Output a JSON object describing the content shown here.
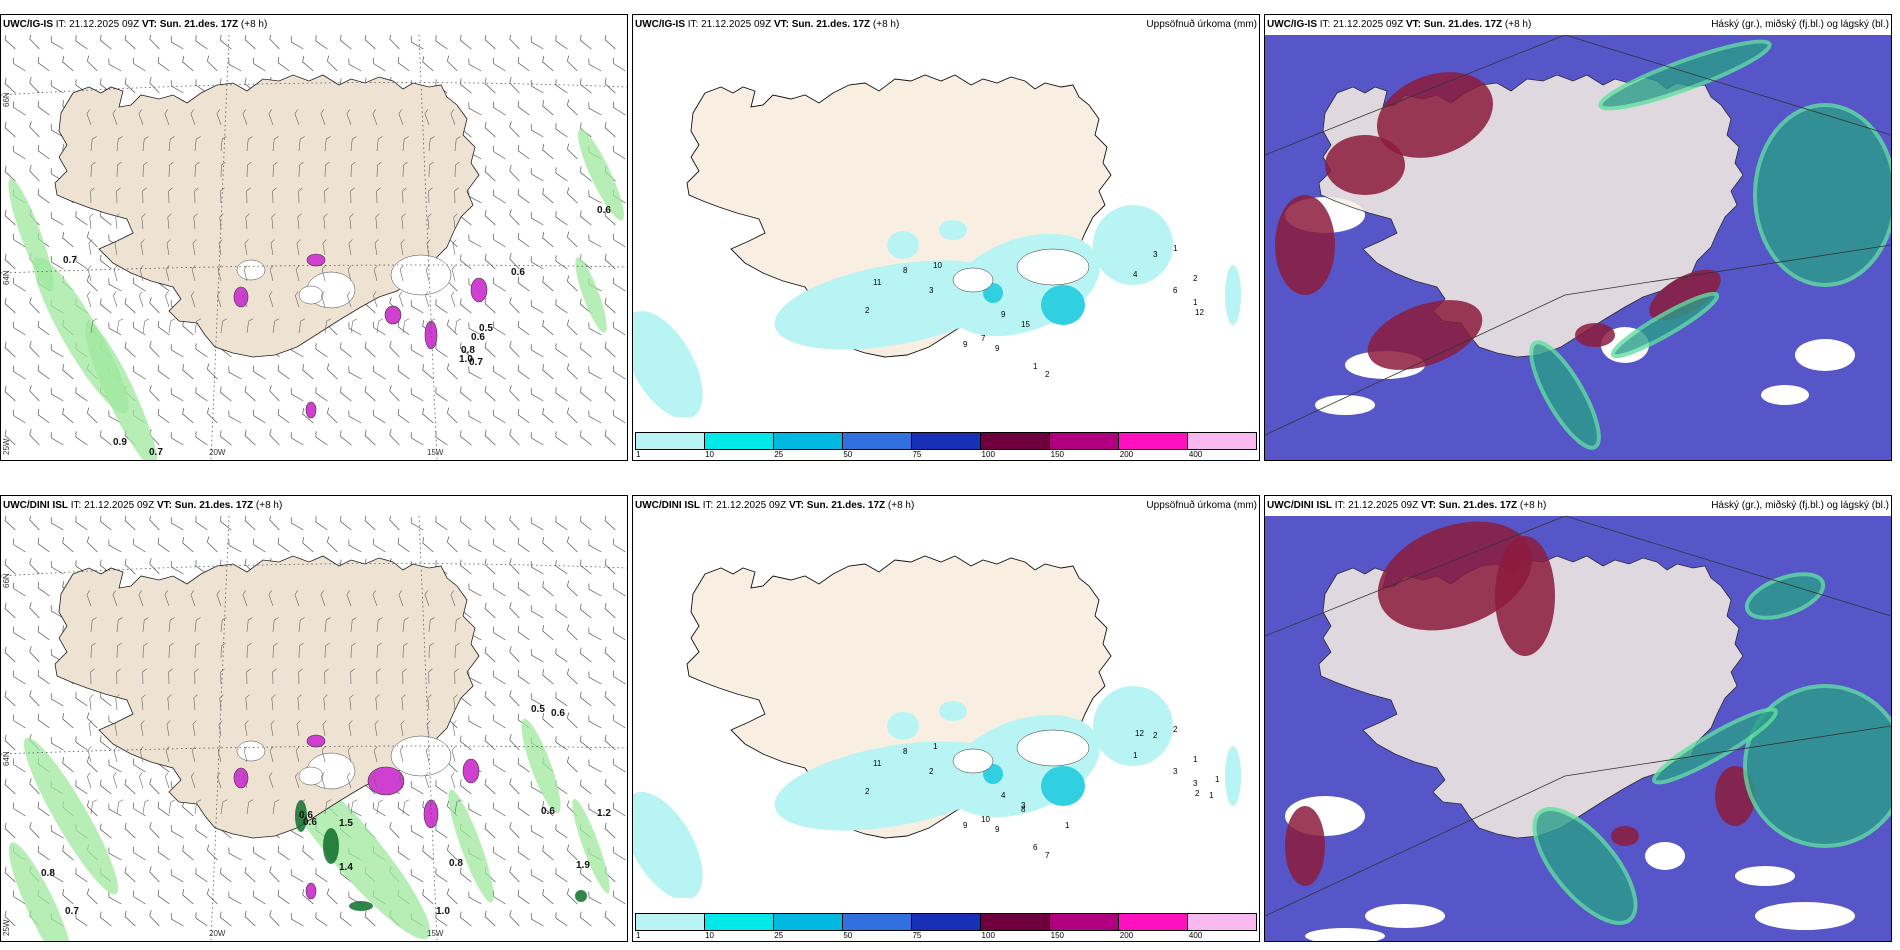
{
  "panels": [
    {
      "model": "UWC/IG-IS",
      "it_label": "IT:",
      "it": "21.12.2025 09Z",
      "vt_label": "VT:",
      "vt": "Sun. 21.des. 17Z",
      "lead": "(+8 h)",
      "title": ""
    },
    {
      "model": "UWC/IG-IS",
      "it_label": "IT:",
      "it": "21.12.2025 09Z",
      "vt_label": "VT:",
      "vt": "Sun. 21.des. 17Z",
      "lead": "(+8 h)",
      "title": "Uppsöfnuð úrkoma (mm)"
    },
    {
      "model": "UWC/IG-IS",
      "it_label": "IT:",
      "it": "21.12.2025 09Z",
      "vt_label": "VT:",
      "vt": "Sun. 21.des. 17Z",
      "lead": "(+8 h)",
      "title": "Háský (gr.), miðský (fj.bl.) og lágský (bl.)"
    },
    {
      "model": "UWC/DINI ISL",
      "it_label": "IT:",
      "it": "21.12.2025 09Z",
      "vt_label": "VT:",
      "vt": "Sun. 21.des. 17Z",
      "lead": "(+8 h)",
      "title": ""
    },
    {
      "model": "UWC/DINI ISL",
      "it_label": "IT:",
      "it": "21.12.2025 09Z",
      "vt_label": "VT:",
      "vt": "Sun. 21.des. 17Z",
      "lead": "(+8 h)",
      "title": "Uppsöfnuð úrkoma (mm)"
    },
    {
      "model": "UWC/DINI ISL",
      "it_label": "IT:",
      "it": "21.12.2025 09Z",
      "vt_label": "VT:",
      "vt": "Sun. 21.des. 17Z",
      "lead": "(+8 h)",
      "title": "Háský (gr.), miðský (fj.bl.) og lágský (bl.)"
    }
  ],
  "grid_labels": {
    "lat66": "66N",
    "lat64": "64N",
    "lon20": "20W",
    "lon15": "15W",
    "lon25": "25W"
  },
  "legend": {
    "colors": [
      "#b8f4f4",
      "#00e8e8",
      "#00b8e0",
      "#3070e0",
      "#1830b8",
      "#6e0040",
      "#b00080",
      "#ff10c0",
      "#f8b8f0"
    ],
    "ticks": [
      "1",
      "10",
      "25",
      "50",
      "75",
      "100",
      "150",
      "200",
      "400"
    ]
  },
  "map_colors": {
    "land": "#f8efe2",
    "land_wind": "#eee2d2",
    "high": "#8c1b3c",
    "mid": "#5656c8",
    "low": "#2a9e8a",
    "low_green": "#5ee0a0",
    "precip_light": "#b8f4f4",
    "precip_mid": "#30d0e0",
    "snow_purple": "#d040d0",
    "rain_green": "#9ee89e"
  },
  "labels": {
    "wind_top": [
      "0.7",
      "0.6",
      "0.6",
      "0.6",
      "0.5",
      "0.7",
      "0.9",
      "0.7",
      "0.8",
      "1.0"
    ],
    "precip_top": [
      "11",
      "2",
      "8",
      "10",
      "3",
      "9",
      "7",
      "9",
      "9",
      "15",
      "1",
      "2",
      "4",
      "3",
      "6",
      "2",
      "1",
      "1",
      "12"
    ],
    "wind_bottom": [
      "0.6",
      "0.6",
      "0.5",
      "0.6",
      "1.5",
      "1.2",
      "0.6",
      "0.8",
      "0.7",
      "1.0",
      "0.8",
      "1.4",
      "1.9"
    ],
    "precip_bottom": [
      "11",
      "2",
      "8",
      "1",
      "2",
      "9",
      "10",
      "9",
      "4",
      "3",
      "6",
      "7",
      "1",
      "2",
      "3",
      "1",
      "2",
      "3",
      "2",
      "1",
      "1",
      "12",
      "8",
      "1"
    ]
  }
}
